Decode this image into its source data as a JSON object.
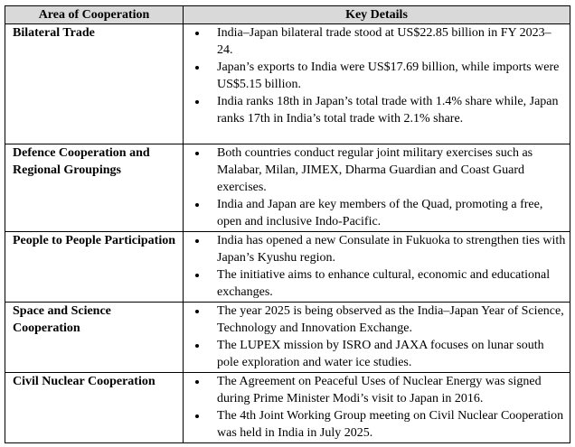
{
  "table": {
    "headers": [
      "Area of Cooperation",
      "Key Details"
    ],
    "rows": [
      {
        "area": "Bilateral Trade",
        "details": [
          "India–Japan bilateral trade stood at US$22.85 billion in FY 2023–24.",
          "Japan’s exports to India were US$17.69 billion, while imports were US$5.15 billion.",
          "India ranks 18th in Japan’s total trade with 1.4% share while, Japan ranks 17th in India’s total trade with 2.1% share."
        ]
      },
      {
        "area": "Defence Cooperation and Regional Groupings",
        "details": [
          "Both countries conduct regular joint military exercises such as Malabar, Milan, JIMEX, Dharma Guardian and Coast Guard exercises.",
          "India and Japan are key members of the Quad, promoting a free, open and inclusive Indo-Pacific."
        ]
      },
      {
        "area": "People to People Participation",
        "details": [
          "India has opened a new Consulate in Fukuoka to strengthen ties with Japan’s Kyushu region.",
          "The initiative aims to enhance cultural, economic and educational exchanges."
        ]
      },
      {
        "area": "Space and Science Cooperation",
        "details": [
          "The year 2025 is being observed as the India–Japan Year of Science, Technology and Innovation Exchange.",
          "The LUPEX mission by ISRO and JAXA focuses on lunar south pole exploration and water ice studies."
        ]
      },
      {
        "area": "Civil Nuclear Cooperation",
        "details": [
          "The Agreement on Peaceful Uses of Nuclear Energy was signed during Prime Minister Modi’s visit to Japan in 2016.",
          "The 4th Joint Working Group meeting on Civil Nuclear Cooperation was held in India in July 2025."
        ]
      }
    ]
  }
}
